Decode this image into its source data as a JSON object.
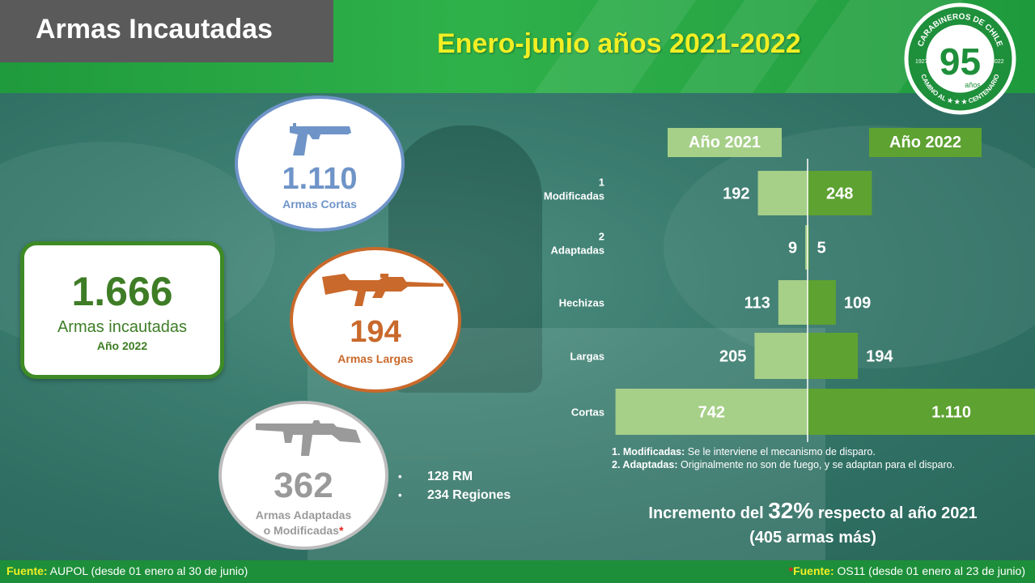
{
  "header": {
    "title": "Armas Incautadas",
    "subtitle": "Enero-junio años 2021-2022"
  },
  "logo": {
    "top_text": "CARABINEROS DE CHILE",
    "number": "95",
    "years_word": "años",
    "left_year": "1927",
    "right_year": "2022",
    "bottom_text": "CAMINO AL ★ ★ ★ CENTENARIO"
  },
  "total": {
    "value": "1.666",
    "label": "Armas incautadas",
    "year": "Año 2022"
  },
  "circles": [
    {
      "value": "1.110",
      "label": "Armas Cortas",
      "icon": "pistol-icon",
      "color": "#6f94c8"
    },
    {
      "value": "194",
      "label": "Armas Largas",
      "icon": "rifle-icon",
      "color": "#c9692b"
    },
    {
      "value": "362",
      "label_line1": "Armas Adaptadas",
      "label_line2": "o Modificadas",
      "asterisk": "*",
      "icon": "submachine-gun-icon",
      "color": "#9a9a9a"
    }
  ],
  "breakdown": [
    {
      "text": "128 RM"
    },
    {
      "text": "234 Regiones"
    }
  ],
  "chart_data": {
    "type": "bar",
    "orientation": "horizontal-butterfly",
    "categories": [
      "Modificadas",
      "Adaptadas",
      "Hechizas",
      "Largas",
      "Cortas"
    ],
    "category_notes": [
      "1",
      "2",
      "",
      "",
      ""
    ],
    "series": [
      {
        "name": "Año 2021",
        "values": [
          192,
          9,
          113,
          205,
          742
        ],
        "labels": [
          "192",
          "9",
          "113",
          "205",
          "742"
        ],
        "color": "#a6cf88"
      },
      {
        "name": "Año 2022",
        "values": [
          248,
          5,
          109,
          194,
          1110
        ],
        "labels": [
          "248",
          "5",
          "109",
          "194",
          "1.110"
        ],
        "color": "#5ea232"
      }
    ]
  },
  "notes": [
    {
      "term": "1. Modificadas:",
      "text": " Se le interviene el mecanismo de disparo."
    },
    {
      "term": "2. Adaptadas:",
      "text": " Originalmente no son de fuego, y se adaptan para el disparo."
    }
  ],
  "increment": {
    "before": "Incremento del ",
    "pct": "32%",
    "after": " respecto al año 2021",
    "line2": "(405 armas más)"
  },
  "footer": {
    "left_label": "Fuente:",
    "left_text": " AUPOL (desde 01 enero al 30 de junio)",
    "right_asterisk": "*",
    "right_label": "Fuente:",
    "right_text": " OS11 (desde 01 enero al 23 de junio)"
  }
}
